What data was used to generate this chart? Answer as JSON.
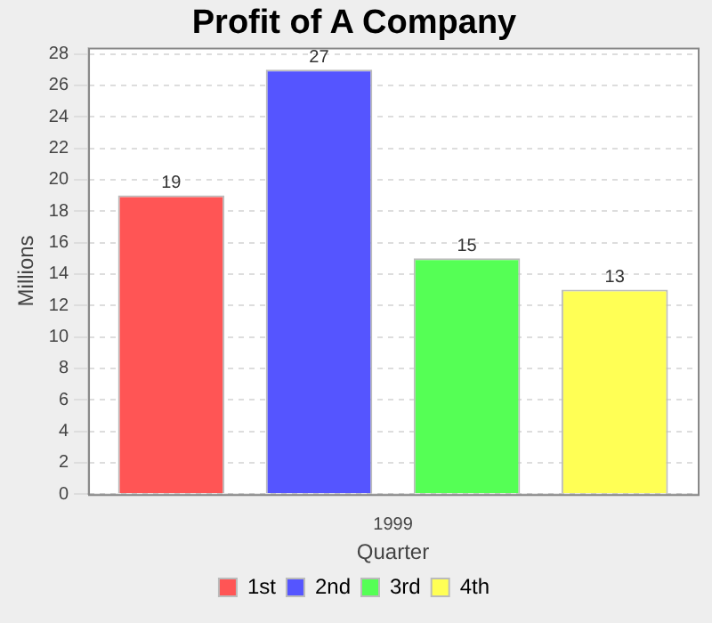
{
  "chart_data": {
    "type": "bar",
    "title": "Profit of A Company",
    "xlabel": "Quarter",
    "ylabel": "Millions",
    "categories": [
      "1999"
    ],
    "series": [
      {
        "name": "1st",
        "color": "#ff5555",
        "values": [
          19
        ]
      },
      {
        "name": "2nd",
        "color": "#5555ff",
        "values": [
          27
        ]
      },
      {
        "name": "3rd",
        "color": "#55ff55",
        "values": [
          15
        ]
      },
      {
        "name": "4th",
        "color": "#ffff55",
        "values": [
          13
        ]
      }
    ],
    "ylim": [
      0,
      28.4
    ],
    "yticks": [
      0,
      2,
      4,
      6,
      8,
      10,
      12,
      14,
      16,
      18,
      20,
      22,
      24,
      26,
      28
    ],
    "grid": "y",
    "legend": "bottom",
    "data_labels": true
  }
}
